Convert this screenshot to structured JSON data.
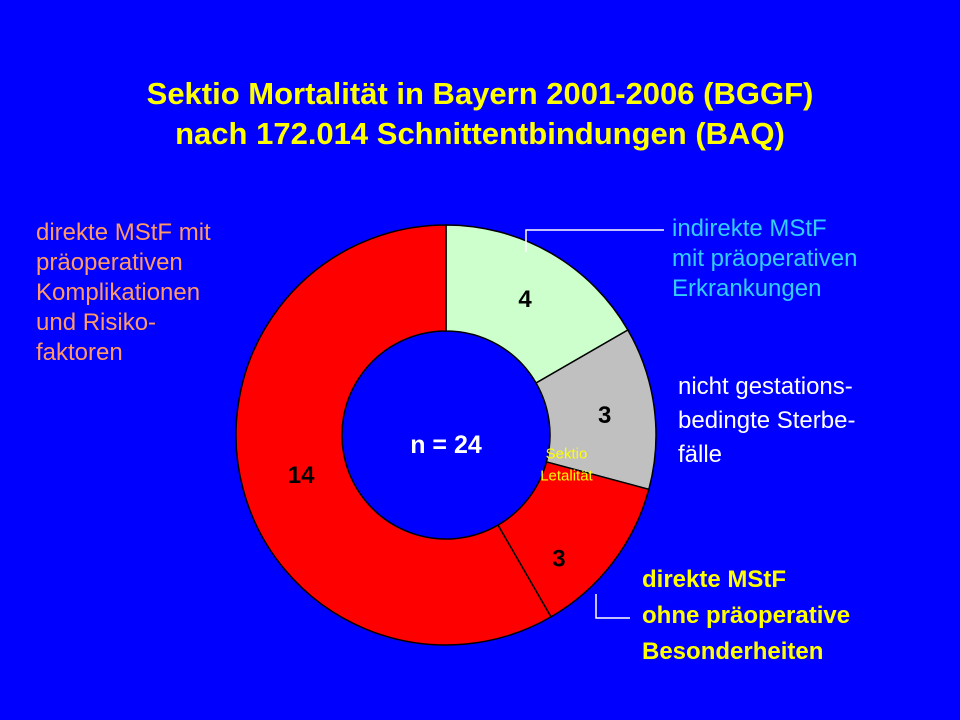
{
  "title": {
    "line1": "Sektio Mortalität in Bayern 2001-2006 (BGGF)",
    "line2": "nach 172.014 Schnittentbindungen (BAQ)"
  },
  "colors": {
    "background": "#0000ff",
    "title": "#ffff00",
    "light_green": "#ccffcc",
    "gray": "#c0c0c0",
    "red": "#ff0000",
    "orange_text": "#ff9966",
    "cyan_text": "#33ccff",
    "white_text": "#ffffff",
    "yellow_text": "#ffff00"
  },
  "chart_data": {
    "type": "pie",
    "variant": "donut",
    "total_label": "n = 24",
    "slices": [
      {
        "value": 4,
        "label": "4",
        "color": "#ccffcc",
        "description": [
          "indirekte MStF",
          "mit präoperativen",
          "Erkrankungen"
        ]
      },
      {
        "value": 3,
        "label": "3",
        "color": "#c0c0c0",
        "description": [
          "nicht gestations-",
          "bedingte Sterbe-",
          "fälle"
        ]
      },
      {
        "value": 3,
        "label": "3",
        "color": "#ff0000",
        "description": [
          "direkte MStF",
          "ohne präoperative",
          "Besonderheiten"
        ],
        "inner_note": [
          "Sektio",
          "Letalität"
        ]
      },
      {
        "value": 14,
        "label": "14",
        "color": "#ff0000",
        "description": [
          "direkte MStF mit",
          "präoperativen",
          "Komplikationen",
          "und Risiko-",
          "faktoren"
        ]
      }
    ]
  }
}
